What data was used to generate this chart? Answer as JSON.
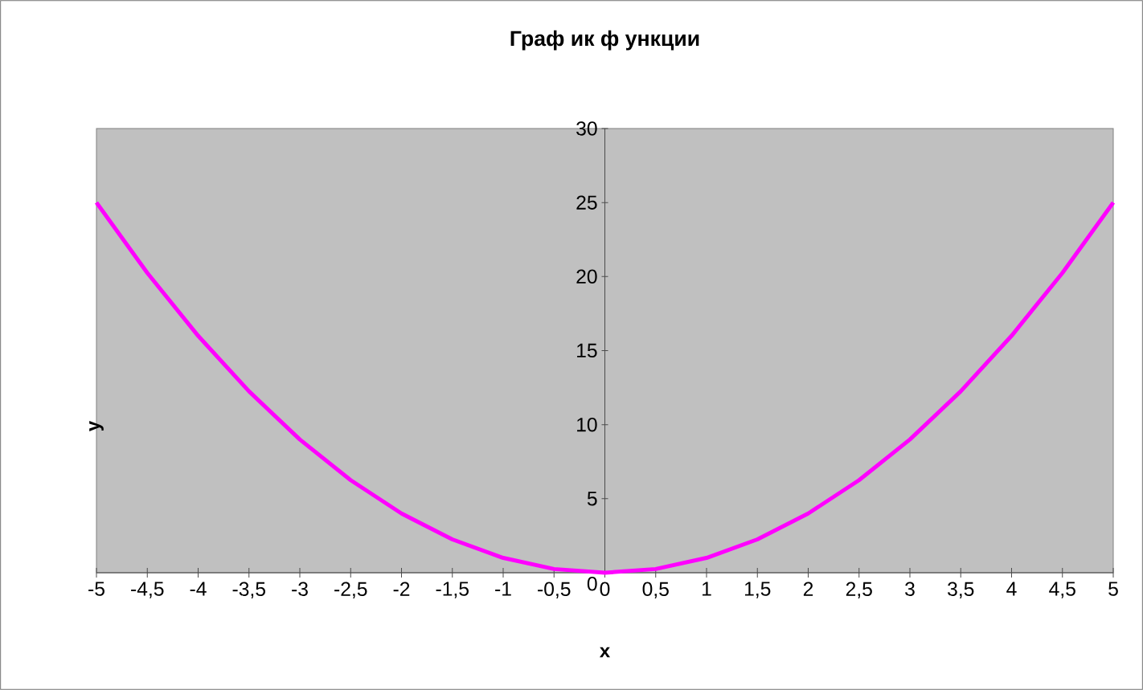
{
  "chart_data": {
    "type": "line",
    "title": "Граф ик ф ункции",
    "xlabel": "x",
    "ylabel": "y",
    "x": [
      -5,
      -4.5,
      -4,
      -3.5,
      -3,
      -2.5,
      -2,
      -1.5,
      -1,
      -0.5,
      0,
      0.5,
      1,
      1.5,
      2,
      2.5,
      3,
      3.5,
      4,
      4.5,
      5
    ],
    "series": [
      {
        "color": "#ff00ff",
        "values": [
          25,
          20.25,
          16,
          12.25,
          9,
          6.25,
          4,
          2.25,
          1,
          0.25,
          0,
          0.25,
          1,
          2.25,
          4,
          6.25,
          9,
          12.25,
          16,
          20.25,
          25
        ]
      }
    ],
    "xlim": [
      -5,
      5
    ],
    "ylim": [
      0,
      30
    ],
    "xticks": [
      -5,
      {
        "value": -4.5,
        "label": "-4,5"
      },
      -4,
      {
        "value": -3.5,
        "label": "-3,5"
      },
      -3,
      {
        "value": -2.5,
        "label": "-2,5"
      },
      -2,
      {
        "value": -1.5,
        "label": "-1,5"
      },
      -1,
      {
        "value": -0.5,
        "label": "-0,5"
      },
      0,
      {
        "value": 0.5,
        "label": "0,5"
      },
      1,
      {
        "value": 1.5,
        "label": "1,5"
      },
      2,
      {
        "value": 2.5,
        "label": "2,5"
      },
      3,
      {
        "value": 3.5,
        "label": "3,5"
      },
      4,
      {
        "value": 4.5,
        "label": "4,5"
      },
      5
    ],
    "yticks": [
      0,
      5,
      10,
      15,
      20,
      25,
      30
    ],
    "marker": "none",
    "line_style": "solid"
  }
}
